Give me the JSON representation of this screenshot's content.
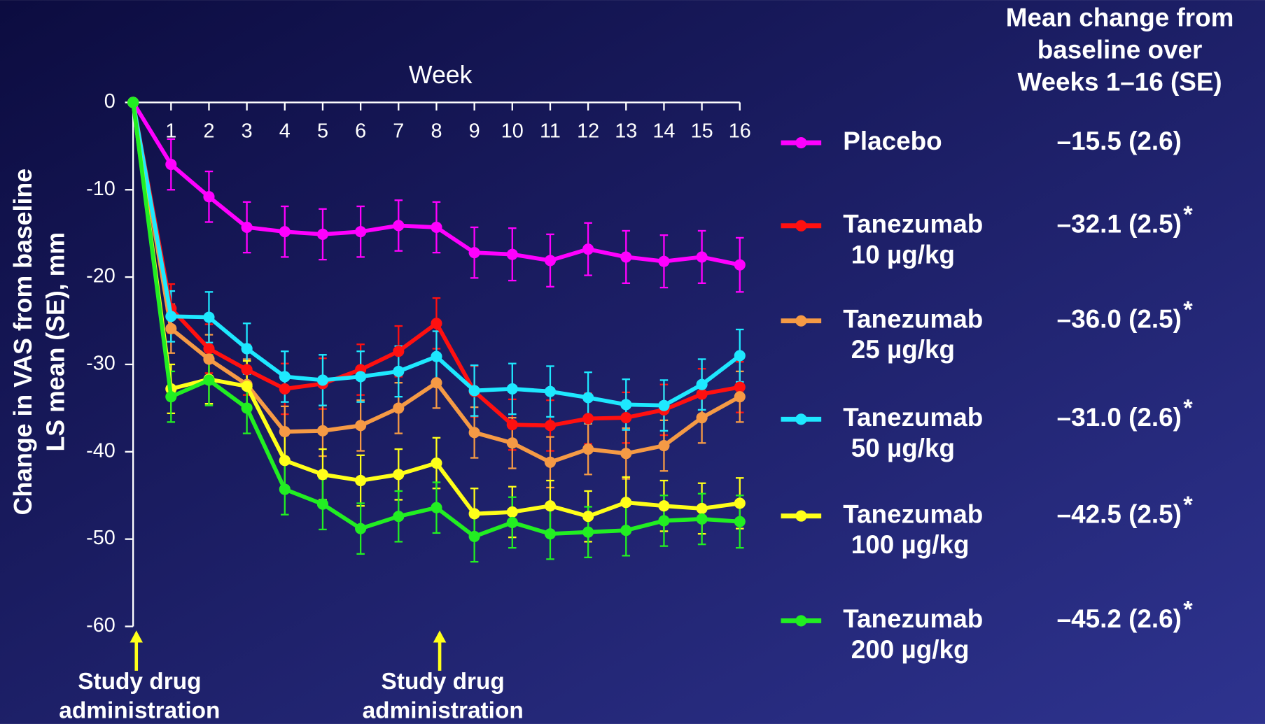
{
  "chart_data": {
    "type": "line",
    "x_label": "Week",
    "y_label": [
      "Change in VAS from baseline",
      "LS mean (SE), mm"
    ],
    "side_header": [
      "Mean change from",
      "baseline over",
      "Weeks 1–16 (SE)"
    ],
    "significance_marker": "*",
    "x": [
      0,
      1,
      2,
      3,
      4,
      5,
      6,
      7,
      8,
      9,
      10,
      11,
      12,
      13,
      14,
      15,
      16
    ],
    "xlim": [
      0,
      16
    ],
    "xticks": [
      1,
      2,
      3,
      4,
      5,
      6,
      7,
      8,
      9,
      10,
      11,
      12,
      13,
      14,
      15,
      16
    ],
    "ylim": [
      -60,
      0
    ],
    "yticks": [
      0,
      -10,
      -20,
      -30,
      -40,
      -50,
      -60
    ],
    "series": [
      {
        "name": "Placebo",
        "color": "#ff00ff",
        "mean_change": "–15.5 (2.6)",
        "significant": false,
        "values": [
          0,
          -7.1,
          -10.8,
          -14.3,
          -14.8,
          -15.1,
          -14.8,
          -14.1,
          -14.3,
          -17.2,
          -17.4,
          -18.1,
          -16.8,
          -17.7,
          -18.2,
          -17.7,
          -18.6
        ],
        "errors": [
          null,
          2.9,
          2.9,
          2.9,
          2.9,
          2.9,
          2.9,
          2.9,
          2.9,
          2.9,
          3.0,
          3.0,
          3.0,
          3.0,
          3.0,
          3.0,
          3.1
        ]
      },
      {
        "name": "Tanezumab",
        "dose": "10 µg/kg",
        "color": "#ff1010",
        "mean_change": "–32.1 (2.5)",
        "significant": true,
        "values": [
          0,
          -23.6,
          -28.2,
          -30.6,
          -32.8,
          -32.2,
          -30.6,
          -28.5,
          -25.3,
          -33.1,
          -36.9,
          -37.0,
          -36.2,
          -36.1,
          -35.2,
          -33.4,
          -32.6
        ],
        "errors": [
          null,
          2.8,
          2.8,
          2.9,
          2.9,
          2.9,
          2.9,
          2.9,
          2.9,
          2.9,
          2.9,
          2.9,
          2.9,
          2.9,
          2.9,
          2.9,
          2.9
        ]
      },
      {
        "name": "Tanezumab",
        "dose": "25 µg/kg",
        "color": "#f59a45",
        "mean_change": "–36.0 (2.5)",
        "significant": true,
        "values": [
          0,
          -25.9,
          -29.4,
          -32.3,
          -37.7,
          -37.6,
          -37.0,
          -35.0,
          -32.1,
          -37.8,
          -39.0,
          -41.2,
          -39.7,
          -40.2,
          -39.3,
          -36.1,
          -33.7
        ],
        "errors": [
          null,
          2.8,
          2.8,
          2.9,
          2.9,
          2.9,
          2.9,
          2.9,
          2.9,
          2.9,
          2.9,
          2.9,
          2.9,
          2.9,
          2.9,
          2.9,
          2.9
        ]
      },
      {
        "name": "Tanezumab",
        "dose": "50 µg/kg",
        "color": "#1ee8ff",
        "mean_change": "–31.0 (2.6)",
        "significant": true,
        "values": [
          0,
          -24.5,
          -24.6,
          -28.2,
          -31.4,
          -31.8,
          -31.4,
          -30.8,
          -29.1,
          -33.0,
          -32.8,
          -33.1,
          -33.8,
          -34.6,
          -34.7,
          -32.3,
          -29.0
        ],
        "errors": [
          null,
          2.9,
          2.9,
          2.9,
          2.9,
          2.9,
          2.9,
          2.9,
          2.9,
          2.9,
          2.9,
          2.9,
          2.9,
          2.9,
          2.9,
          2.9,
          3.0
        ]
      },
      {
        "name": "Tanezumab",
        "dose": "100 µg/kg",
        "color": "#ffff1a",
        "mean_change": "–42.5 (2.5)",
        "significant": true,
        "values": [
          0,
          -32.8,
          -31.7,
          -32.5,
          -41.0,
          -42.6,
          -43.3,
          -42.6,
          -41.3,
          -47.1,
          -46.9,
          -46.2,
          -47.4,
          -45.8,
          -46.2,
          -46.5,
          -45.9
        ],
        "errors": [
          null,
          2.8,
          2.8,
          2.9,
          2.9,
          2.9,
          2.9,
          2.9,
          2.9,
          2.9,
          2.9,
          2.9,
          2.9,
          2.9,
          2.9,
          2.9,
          2.9
        ]
      },
      {
        "name": "Tanezumab",
        "dose": "200 µg/kg",
        "color": "#22ee22",
        "mean_change": "–45.2 (2.6)",
        "significant": true,
        "values": [
          0,
          -33.7,
          -31.8,
          -35.0,
          -44.3,
          -46.0,
          -48.8,
          -47.4,
          -46.4,
          -49.7,
          -48.1,
          -49.4,
          -49.2,
          -49.0,
          -47.9,
          -47.7,
          -48.0
        ],
        "errors": [
          null,
          2.9,
          2.9,
          2.9,
          2.9,
          2.9,
          2.9,
          2.9,
          2.9,
          2.9,
          2.9,
          2.9,
          2.9,
          2.9,
          2.9,
          2.9,
          3.0
        ]
      }
    ],
    "annotations": [
      {
        "x": 0,
        "text": [
          "Study drug",
          "administration"
        ]
      },
      {
        "x": 8,
        "text": [
          "Study drug",
          "administration"
        ]
      }
    ]
  }
}
